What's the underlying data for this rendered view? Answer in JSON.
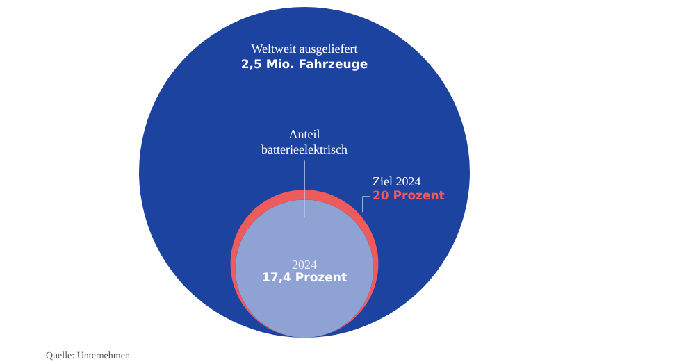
{
  "chart_data": {
    "type": "other",
    "categories": [
      "Weltweit ausgeliefert",
      "Ziel 2024",
      "2024"
    ],
    "values": [
      2.5,
      20,
      17.4
    ],
    "value_labels": [
      "2,5 Mio. Fahrzeuge",
      "20 Prozent",
      "17,4 Prozent"
    ],
    "colors": [
      "#1c43a0",
      "#ef5a5a",
      "#8ea3d3"
    ],
    "annotations": [
      "Anteil batterieelektrisch",
      "Quelle: Unternehmen"
    ]
  }
}
